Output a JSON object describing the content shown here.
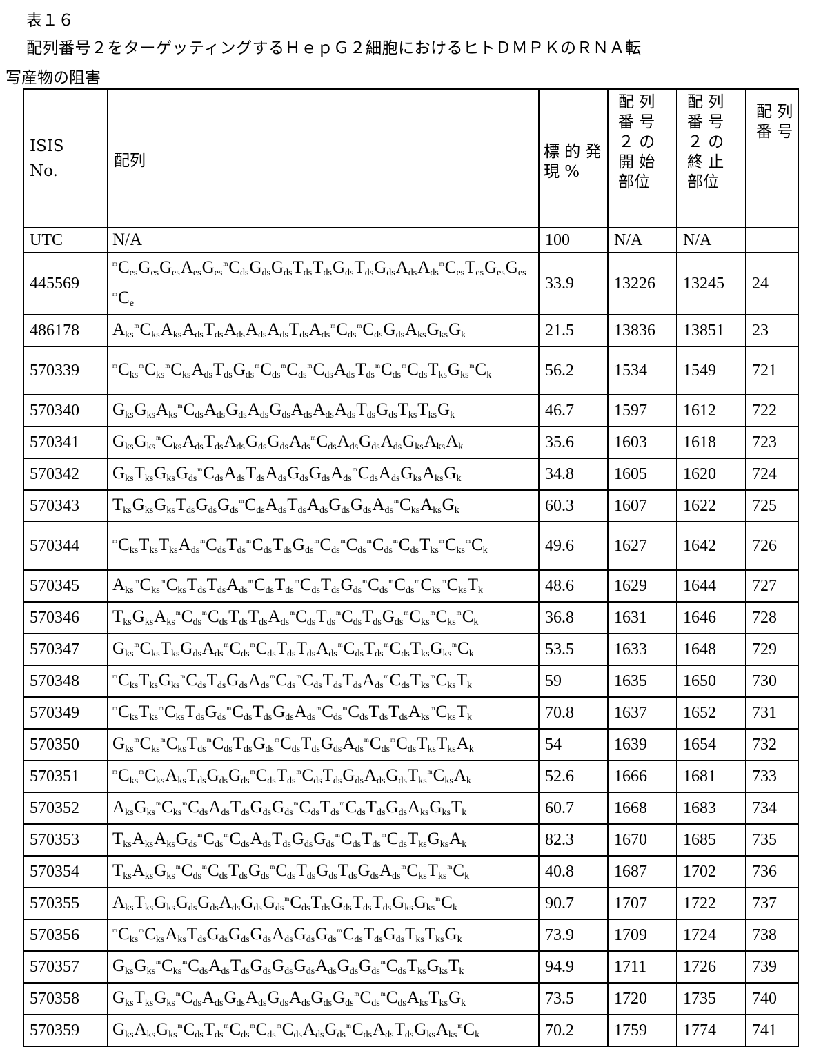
{
  "table_number": "表１６",
  "caption_line1": "配列番号２をターゲッティングするＨｅｐＧ２細胞におけるヒトＤＭＰＫのＲＮＡ転",
  "caption_line2": "写産物の阻害",
  "headers": {
    "isis": "ISIS No.",
    "sequence": "配列",
    "target_expression": "標 的 発 現 %",
    "start_site": "配 列 番 号 ２ の 開 始 部位",
    "stop_site": "配 列 番 号 ２ の 終 止 部位",
    "seq_id": "配 列 番 号"
  },
  "rows": [
    {
      "isis": "UTC",
      "sequence": "N/A",
      "target": "100",
      "start": "N/A",
      "stop": "N/A",
      "seq_id": ""
    },
    {
      "isis": "445569",
      "sequence": "mCes Ges Ges Aes Ges mCds Gds Gds Tds Tds Gds Tds Gds Ads Ads mCes Tes Ges Ges mCe",
      "target": "33.9",
      "start": "13226",
      "stop": "13245",
      "seq_id": "24"
    },
    {
      "isis": "486178",
      "sequence": "Aks mCks Aks Ads Tds Ads Ads Ads Tds Ads mCds mCds Gds Aks Gks Gk",
      "target": "21.5",
      "start": "13836",
      "stop": "13851",
      "seq_id": "23"
    },
    {
      "isis": "570339",
      "sequence": "mCks mCks mCks Ads Tds Gds mCds mCds mCds Ads Tds mCds mCds Tks Gks mCk",
      "target": "56.2",
      "start": "1534",
      "stop": "1549",
      "seq_id": "721"
    },
    {
      "isis": "570340",
      "sequence": "Gks Gks Aks mCds Ads Gds Ads Gds Ads Ads Ads Tds Gds Tks Tks Gk",
      "target": "46.7",
      "start": "1597",
      "stop": "1612",
      "seq_id": "722"
    },
    {
      "isis": "570341",
      "sequence": "Gks Gks mCks Ads Tds Ads Gds Gds Ads mCds Ads Gds Ads Gks Aks Ak",
      "target": "35.6",
      "start": "1603",
      "stop": "1618",
      "seq_id": "723"
    },
    {
      "isis": "570342",
      "sequence": "Gks Tks Gks Gds mCds Ads Tds Ads Gds Gds Ads mCds Ads Gks Aks Gk",
      "target": "34.8",
      "start": "1605",
      "stop": "1620",
      "seq_id": "724"
    },
    {
      "isis": "570343",
      "sequence": "Tks Gks Gks Tds Gds Gds mCds Ads Tds Ads Gds Gds Ads mCks Aks Gk",
      "target": "60.3",
      "start": "1607",
      "stop": "1622",
      "seq_id": "725"
    },
    {
      "isis": "570344",
      "sequence": "mCks Tks Tks Ads mCds Tds mCds Tds Gds mCds mCds mCds mCds Tks mCks mCk",
      "target": "49.6",
      "start": "1627",
      "stop": "1642",
      "seq_id": "726"
    },
    {
      "isis": "570345",
      "sequence": "Aks mCks mCks Tds Tds Ads mCds Tds mCds Tds Gds mCds mCds mCks mCks Tk",
      "target": "48.6",
      "start": "1629",
      "stop": "1644",
      "seq_id": "727"
    },
    {
      "isis": "570346",
      "sequence": "Tks Gks Aks mCds mCds Tds Tds Ads mCds Tds mCds Tds Gds mCks mCks mCk",
      "target": "36.8",
      "start": "1631",
      "stop": "1646",
      "seq_id": "728"
    },
    {
      "isis": "570347",
      "sequence": "Gks mCks Tks Gds Ads mCds mCds Tds Tds Ads mCds Tds mCds Tks Gks mCk",
      "target": "53.5",
      "start": "1633",
      "stop": "1648",
      "seq_id": "729"
    },
    {
      "isis": "570348",
      "sequence": "mCks Tks Gks mCds Tds Gds Ads mCds mCds Tds Tds Ads mCds Tks mCks Tk",
      "target": "59",
      "start": "1635",
      "stop": "1650",
      "seq_id": "730"
    },
    {
      "isis": "570349",
      "sequence": "mCks Tks mCks Tds Gds mCds Tds Gds Ads mCds mCds Tds Tds Aks mCks Tk",
      "target": "70.8",
      "start": "1637",
      "stop": "1652",
      "seq_id": "731"
    },
    {
      "isis": "570350",
      "sequence": "Gks mCks mCks Tds mCds Tds Gds mCds Tds Gds Ads mCds mCds Tks Tks Ak",
      "target": "54",
      "start": "1639",
      "stop": "1654",
      "seq_id": "732"
    },
    {
      "isis": "570351",
      "sequence": "mCks mCks Aks Tds Gds Gds mCds Tds mCds Tds Gds Ads Gds Tks mCks Ak",
      "target": "52.6",
      "start": "1666",
      "stop": "1681",
      "seq_id": "733"
    },
    {
      "isis": "570352",
      "sequence": "Aks Gks mCks mCds Ads Tds Gds Gds mCds Tds mCds Tds Gds Aks Gks Tk",
      "target": "60.7",
      "start": "1668",
      "stop": "1683",
      "seq_id": "734"
    },
    {
      "isis": "570353",
      "sequence": "Tks Aks Aks Gds mCds mCds Ads Tds Gds Gds mCds Tds mCds Tks Gks Ak",
      "target": "82.3",
      "start": "1670",
      "stop": "1685",
      "seq_id": "735"
    },
    {
      "isis": "570354",
      "sequence": "Tks Aks Gks mCds mCds Tds Gds mCds Tds Gds Tds Gds Ads mCks Tks mCk",
      "target": "40.8",
      "start": "1687",
      "stop": "1702",
      "seq_id": "736"
    },
    {
      "isis": "570355",
      "sequence": "Aks Tks Gks Gds Gds Ads Gds Gds mCds Tds Gds Tds Tds Gks Gks mCk",
      "target": "90.7",
      "start": "1707",
      "stop": "1722",
      "seq_id": "737"
    },
    {
      "isis": "570356",
      "sequence": "mCks mCks Aks Tds Gds Gds Gds Ads Gds Gds mCds Tds Gds Tks Tks Gk",
      "target": "73.9",
      "start": "1709",
      "stop": "1724",
      "seq_id": "738"
    },
    {
      "isis": "570357",
      "sequence": "Gks Gks mCks mCds Ads Tds Gds Gds Gds Ads Gds Gds mCds Tks Gks Tk",
      "target": "94.9",
      "start": "1711",
      "stop": "1726",
      "seq_id": "739"
    },
    {
      "isis": "570358",
      "sequence": "Gks Tks Gks mCds Ads Gds Ads Gds Ads Gds Gds mCds mCds Aks Tks Gk",
      "target": "73.5",
      "start": "1720",
      "stop": "1735",
      "seq_id": "740"
    },
    {
      "isis": "570359",
      "sequence": "Gks Aks Gks mCds Tds mCds mCds mCds Ads Gds mCds Ads Tds Gks Aks mCk",
      "target": "70.2",
      "start": "1759",
      "stop": "1774",
      "seq_id": "741"
    }
  ]
}
